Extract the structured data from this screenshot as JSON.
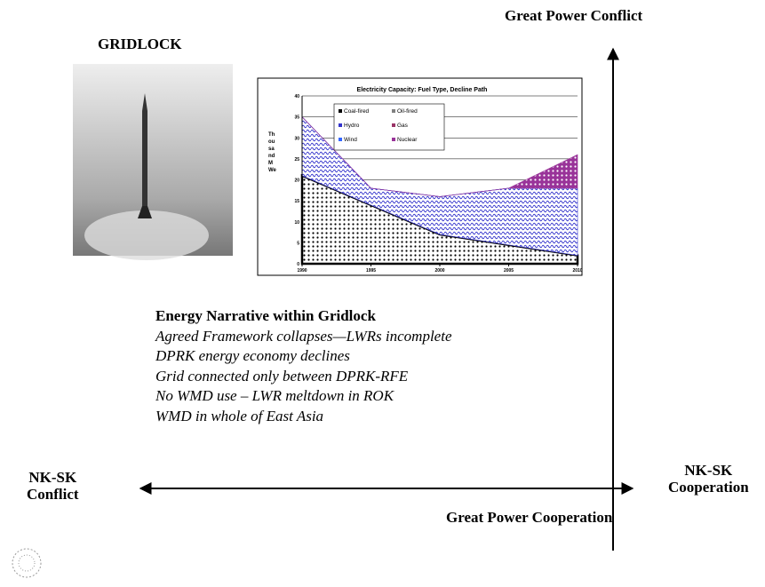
{
  "labels": {
    "title": "GRIDLOCK",
    "top": "Great Power Conflict",
    "bottom": "Great Power Cooperation",
    "left": [
      "NK-SK",
      "Conflict"
    ],
    "right": [
      "NK-SK",
      "Cooperation"
    ]
  },
  "narrative": {
    "heading": "Energy Narrative within Gridlock",
    "lines": [
      "Agreed Framework collapses—LWRs incomplete",
      "DPRK energy economy declines",
      "Grid connected only between DPRK-RFE",
      "No WMD use – LWR meltdown in ROK",
      "WMD  in whole of East Asia"
    ]
  },
  "chart_data": {
    "type": "area",
    "title": "Electricity Capacity: Fuel Type, Decline Path",
    "ylabel": "Thousand MWe",
    "x": [
      1990,
      1995,
      2000,
      2005,
      2010
    ],
    "series": [
      {
        "name": "Coal-fired",
        "color": "#000000",
        "values": [
          21,
          14,
          7,
          4.5,
          2
        ]
      },
      {
        "name": "Oil-fired",
        "color": "#808080",
        "values": [
          0,
          0,
          0,
          0,
          0
        ]
      },
      {
        "name": "Hydro",
        "color": "#3333cc",
        "values": [
          14,
          4,
          9,
          13.5,
          16
        ]
      },
      {
        "name": "Gas",
        "color": "#993366",
        "values": [
          0,
          0,
          0,
          0,
          0
        ]
      },
      {
        "name": "Wind",
        "color": "#3366ff",
        "values": [
          0,
          0,
          0,
          0,
          0
        ]
      },
      {
        "name": "Nuclear",
        "color": "#993399",
        "values": [
          0,
          0,
          0,
          0,
          8
        ]
      }
    ],
    "xlim": [
      1990,
      2010
    ],
    "xticks": [
      1990,
      1995,
      2000,
      2005,
      2010
    ],
    "ylim": [
      0,
      40
    ],
    "yticks": [
      0,
      5,
      10,
      15,
      20,
      25,
      30,
      35,
      40
    ],
    "grid": true
  }
}
